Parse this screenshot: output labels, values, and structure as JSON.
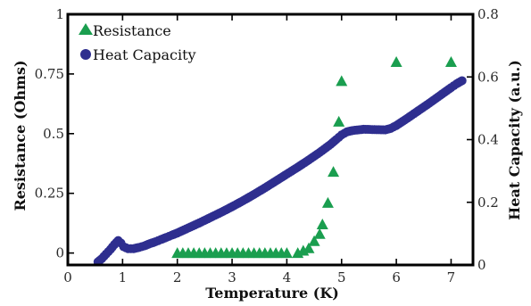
{
  "chart_data": {
    "type": "scatter",
    "xlabel": "Temperature (K)",
    "ylabel_left": "Resistance (Ohms)",
    "ylabel_right": "Heat Capacity (a.u.)",
    "xlim": [
      0,
      7.4
    ],
    "ylim_left": [
      -0.05,
      1.0
    ],
    "ylim_right": [
      0,
      0.8
    ],
    "x_ticks": [
      "0",
      "1",
      "2",
      "3",
      "4",
      "5",
      "6",
      "7"
    ],
    "y_left_ticks": [
      "0",
      "0.25",
      "0.5",
      "0.75",
      "1"
    ],
    "y_right_ticks": [
      "0",
      "0.2",
      "0.4",
      "0.6",
      "0.8"
    ],
    "legend_placement": "top-left",
    "grid": false,
    "series": [
      {
        "name": "Resistance",
        "axis": "left",
        "marker": "triangle",
        "color": "#1a9e4f",
        "points": [
          [
            2.0,
            0.0
          ],
          [
            2.1,
            0.0
          ],
          [
            2.2,
            0.0
          ],
          [
            2.3,
            0.0
          ],
          [
            2.4,
            0.0
          ],
          [
            2.5,
            0.0
          ],
          [
            2.6,
            0.0
          ],
          [
            2.7,
            0.0
          ],
          [
            2.8,
            0.0
          ],
          [
            2.9,
            0.0
          ],
          [
            3.0,
            0.0
          ],
          [
            3.1,
            0.0
          ],
          [
            3.2,
            0.0
          ],
          [
            3.3,
            0.0
          ],
          [
            3.4,
            0.0
          ],
          [
            3.5,
            0.0
          ],
          [
            3.6,
            0.0
          ],
          [
            3.7,
            0.0
          ],
          [
            3.8,
            0.0
          ],
          [
            3.9,
            0.0
          ],
          [
            4.0,
            0.0
          ],
          [
            4.2,
            0.0
          ],
          [
            4.3,
            0.01
          ],
          [
            4.4,
            0.02
          ],
          [
            4.5,
            0.05
          ],
          [
            4.6,
            0.08
          ],
          [
            4.65,
            0.12
          ],
          [
            4.75,
            0.21
          ],
          [
            4.85,
            0.34
          ],
          [
            4.95,
            0.55
          ],
          [
            5.0,
            0.72
          ],
          [
            6.0,
            0.8
          ],
          [
            7.0,
            0.8
          ]
        ]
      },
      {
        "name": "Heat Capacity",
        "axis": "right",
        "marker": "circle",
        "color": "#2e2e8f",
        "points": [
          [
            0.55,
            0.01
          ],
          [
            0.62,
            0.02
          ],
          [
            0.7,
            0.035
          ],
          [
            0.78,
            0.05
          ],
          [
            0.85,
            0.065
          ],
          [
            0.92,
            0.078
          ],
          [
            0.97,
            0.07
          ],
          [
            1.02,
            0.058
          ],
          [
            1.1,
            0.052
          ],
          [
            1.2,
            0.052
          ],
          [
            1.3,
            0.056
          ],
          [
            1.4,
            0.061
          ],
          [
            1.5,
            0.068
          ],
          [
            1.6,
            0.074
          ],
          [
            1.7,
            0.081
          ],
          [
            1.8,
            0.088
          ],
          [
            1.9,
            0.095
          ],
          [
            2.0,
            0.102
          ],
          [
            2.2,
            0.118
          ],
          [
            2.4,
            0.134
          ],
          [
            2.6,
            0.151
          ],
          [
            2.8,
            0.168
          ],
          [
            3.0,
            0.186
          ],
          [
            3.2,
            0.205
          ],
          [
            3.4,
            0.225
          ],
          [
            3.6,
            0.246
          ],
          [
            3.8,
            0.268
          ],
          [
            4.0,
            0.29
          ],
          [
            4.2,
            0.312
          ],
          [
            4.4,
            0.335
          ],
          [
            4.6,
            0.359
          ],
          [
            4.8,
            0.385
          ],
          [
            4.9,
            0.4
          ],
          [
            5.0,
            0.415
          ],
          [
            5.1,
            0.425
          ],
          [
            5.2,
            0.429
          ],
          [
            5.4,
            0.433
          ],
          [
            5.6,
            0.432
          ],
          [
            5.8,
            0.431
          ],
          [
            5.9,
            0.436
          ],
          [
            6.0,
            0.445
          ],
          [
            6.2,
            0.468
          ],
          [
            6.4,
            0.492
          ],
          [
            6.6,
            0.516
          ],
          [
            6.8,
            0.541
          ],
          [
            7.0,
            0.566
          ],
          [
            7.1,
            0.578
          ],
          [
            7.2,
            0.588
          ]
        ]
      }
    ]
  }
}
